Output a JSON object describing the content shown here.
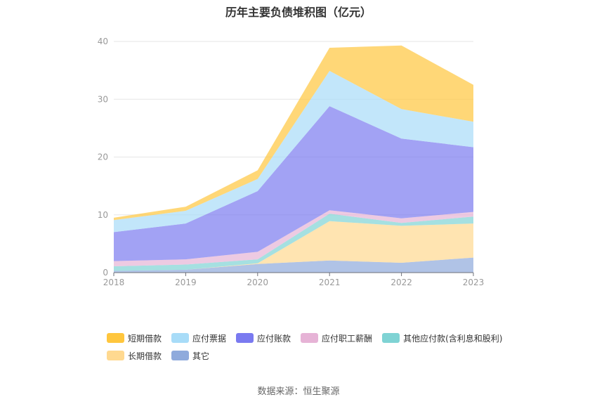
{
  "title": "历年主要负债堆积图（亿元）",
  "source": "数据来源：恒生聚源",
  "chart_data": {
    "type": "area",
    "stacked": true,
    "title": "历年主要负债堆积图（亿元）",
    "categories": [
      "2018",
      "2019",
      "2020",
      "2021",
      "2022",
      "2023"
    ],
    "ylim": [
      0,
      40
    ],
    "yticks": [
      "0",
      "10",
      "20",
      "30",
      "40"
    ],
    "grid": true,
    "legend_position": "bottom",
    "series": [
      {
        "name": "其它",
        "color": "#8faadc",
        "values": [
          0.3,
          0.5,
          1.5,
          2.1,
          1.7,
          2.6
        ]
      },
      {
        "name": "长期借款",
        "color": "#ffd990",
        "values": [
          0.0,
          0.0,
          0.1,
          6.8,
          6.4,
          5.9
        ]
      },
      {
        "name": "其他应付款(含利息和股利)",
        "color": "#7fd3d4",
        "values": [
          0.8,
          0.9,
          0.7,
          1.3,
          0.5,
          1.2
        ]
      },
      {
        "name": "应付职工薪酬",
        "color": "#e6b3d6",
        "values": [
          0.9,
          0.9,
          1.3,
          0.6,
          0.8,
          0.8
        ]
      },
      {
        "name": "应付账款",
        "color": "#7a7af0",
        "values": [
          5.0,
          6.2,
          10.5,
          18.0,
          13.8,
          11.2
        ]
      },
      {
        "name": "应付票据",
        "color": "#a8dcf8",
        "values": [
          2.1,
          2.2,
          2.1,
          6.1,
          5.1,
          4.4
        ]
      },
      {
        "name": "短期借款",
        "color": "#ffc63d",
        "values": [
          0.4,
          0.7,
          1.5,
          4.0,
          11.0,
          6.4
        ]
      }
    ]
  },
  "legend": [
    {
      "name": "短期借款",
      "color": "#ffc63d"
    },
    {
      "name": "应付票据",
      "color": "#a8dcf8"
    },
    {
      "name": "应付账款",
      "color": "#7a7af0"
    },
    {
      "name": "应付职工薪酬",
      "color": "#e6b3d6"
    },
    {
      "name": "其他应付款(含利息和股利)",
      "color": "#7fd3d4"
    },
    {
      "name": "长期借款",
      "color": "#ffd990"
    },
    {
      "name": "其它",
      "color": "#8faadc"
    }
  ]
}
